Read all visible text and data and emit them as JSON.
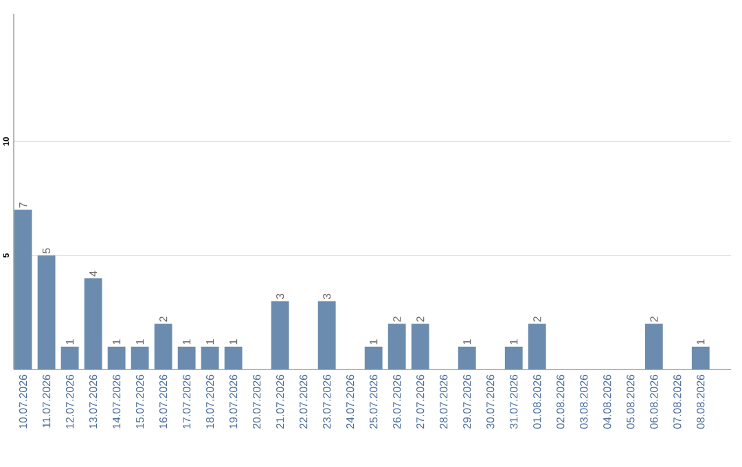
{
  "chart_data": {
    "type": "bar",
    "categories": [
      "10.07.2026",
      "11.07.2026",
      "12.07.2026",
      "13.07.2026",
      "14.07.2026",
      "15.07.2026",
      "16.07.2026",
      "17.07.2026",
      "18.07.2026",
      "19.07.2026",
      "20.07.2026",
      "21.07.2026",
      "22.07.2026",
      "23.07.2026",
      "24.07.2026",
      "25.07.2026",
      "26.07.2026",
      "27.07.2026",
      "28.07.2026",
      "29.07.2026",
      "30.07.2026",
      "31.07.2026",
      "01.08.2026",
      "02.08.2026",
      "03.08.2026",
      "04.08.2026",
      "05.08.2026",
      "06.08.2026",
      "07.08.2026",
      "08.08.2026"
    ],
    "values": [
      7,
      5,
      1,
      4,
      1,
      1,
      2,
      1,
      1,
      1,
      0,
      3,
      0,
      3,
      0,
      1,
      2,
      2,
      0,
      1,
      0,
      1,
      2,
      0,
      0,
      0,
      0,
      2,
      0,
      1
    ],
    "value_labels": [
      "7",
      "5",
      "1",
      "4",
      "1",
      "1",
      "2",
      "1",
      "1",
      "1",
      null,
      "3",
      null,
      "3",
      null,
      "1",
      "2",
      "2",
      null,
      "1",
      null,
      "1",
      "2",
      null,
      null,
      null,
      null,
      "2",
      null,
      "1"
    ],
    "color": "#6b8cae",
    "ylim": [
      0,
      15.6
    ],
    "yticks": [
      5,
      10
    ],
    "grid": "y"
  }
}
